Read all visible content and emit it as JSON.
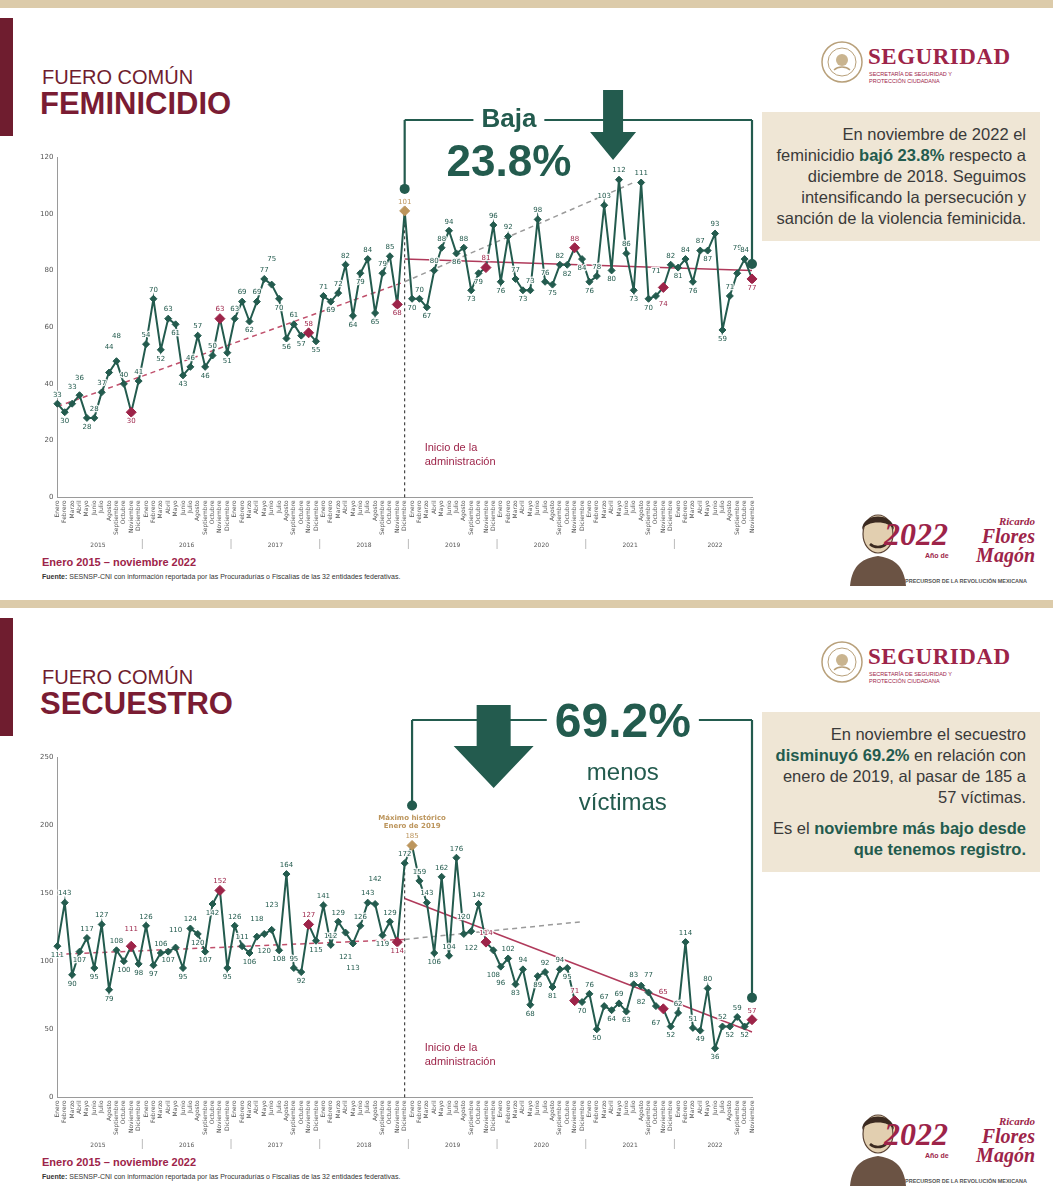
{
  "page": {
    "agency": "SEGURIDAD",
    "agency_subtitle": "SECRETARÍA DE SEGURIDAD Y PROTECCIÓN CIUDADANA",
    "badge": {
      "year": "2022",
      "prefix": "Año de",
      "name": "Ricardo Flores Magón",
      "tagline": "PRECURSOR DE LA REVOLUCIÓN MEXICANA"
    }
  },
  "chart_data": [
    {
      "type": "line",
      "subtitle": "FUERO COMÚN",
      "title": "FEMINICIDIO",
      "categories": [
        "Enero",
        "Febrero",
        "Marzo",
        "Abril",
        "Mayo",
        "Junio",
        "Julio",
        "Agosto",
        "Septiembre",
        "Octubre",
        "Noviembre",
        "Diciembre",
        "Enero",
        "Febrero",
        "Marzo",
        "Abril",
        "Mayo",
        "Junio",
        "Julio",
        "Agosto",
        "Septiembre",
        "Octubre",
        "Noviembre",
        "Diciembre",
        "Enero",
        "Febrero",
        "Marzo",
        "Abril",
        "Mayo",
        "Junio",
        "Julio",
        "Agosto",
        "Septiembre",
        "Octubre",
        "Noviembre",
        "Diciembre",
        "Enero",
        "Febrero",
        "Marzo",
        "Abril",
        "Mayo",
        "Junio",
        "Julio",
        "Agosto",
        "Septiembre",
        "Octubre",
        "Noviembre",
        "Diciembre",
        "Enero",
        "Febrero",
        "Marzo",
        "Abril",
        "Mayo",
        "Junio",
        "Julio",
        "Agosto",
        "Septiembre",
        "Octubre",
        "Noviembre",
        "Diciembre",
        "Enero",
        "Febrero",
        "Marzo",
        "Abril",
        "Mayo",
        "Junio",
        "Julio",
        "Agosto",
        "Septiembre",
        "Octubre",
        "Noviembre",
        "Diciembre",
        "Enero",
        "Febrero",
        "Marzo",
        "Abril",
        "Mayo",
        "Junio",
        "Julio",
        "Agosto",
        "Septiembre",
        "Octubre",
        "Noviembre",
        "Diciembre",
        "Enero",
        "Febrero",
        "Marzo",
        "Abril",
        "Mayo",
        "Junio",
        "Julio",
        "Agosto",
        "Septiembre",
        "Octubre",
        "Noviembre"
      ],
      "x_groups": [
        "2015",
        "2016",
        "2017",
        "2018",
        "2019",
        "2020",
        "2021",
        "2022"
      ],
      "series": [
        {
          "color": "#235b4e",
          "marker": "diamond",
          "line_style": "solid",
          "values": [
            33,
            30,
            33,
            36,
            28,
            28,
            37,
            44,
            48,
            40,
            30,
            41,
            54,
            70,
            52,
            63,
            61,
            43,
            46,
            57,
            46,
            50,
            63,
            51,
            63,
            69,
            62,
            69,
            77,
            75,
            70,
            56,
            61,
            57,
            58,
            55,
            71,
            69,
            72,
            82,
            64,
            79,
            84,
            65,
            79,
            85,
            68,
            101,
            70,
            70,
            67,
            80,
            88,
            94,
            86,
            88,
            73,
            79,
            81,
            96,
            76,
            92,
            77,
            73,
            73,
            98,
            76,
            75,
            82,
            82,
            88,
            84,
            76,
            78,
            103,
            80,
            112,
            86,
            73,
            111,
            70,
            71,
            74,
            82,
            81,
            84,
            76,
            87,
            87,
            93,
            59,
            71,
            79,
            84,
            77
          ],
          "colors": [
            "#235b4e",
            "#235b4e",
            "#235b4e",
            "#235b4e",
            "#235b4e",
            "#235b4e",
            "#235b4e",
            "#235b4e",
            "#235b4e",
            "#235b4e",
            "#9d2449",
            "#235b4e",
            "#235b4e",
            "#235b4e",
            "#235b4e",
            "#235b4e",
            "#235b4e",
            "#235b4e",
            "#235b4e",
            "#235b4e",
            "#235b4e",
            "#235b4e",
            "#9d2449",
            "#235b4e",
            "#235b4e",
            "#235b4e",
            "#235b4e",
            "#235b4e",
            "#235b4e",
            "#235b4e",
            "#235b4e",
            "#235b4e",
            "#235b4e",
            "#235b4e",
            "#9d2449",
            "#235b4e",
            "#235b4e",
            "#235b4e",
            "#235b4e",
            "#235b4e",
            "#235b4e",
            "#235b4e",
            "#235b4e",
            "#235b4e",
            "#235b4e",
            "#235b4e",
            "#9d2449",
            "#bc955c",
            "#235b4e",
            "#235b4e",
            "#235b4e",
            "#235b4e",
            "#235b4e",
            "#235b4e",
            "#235b4e",
            "#235b4e",
            "#235b4e",
            "#235b4e",
            "#9d2449",
            "#235b4e",
            "#235b4e",
            "#235b4e",
            "#235b4e",
            "#235b4e",
            "#235b4e",
            "#235b4e",
            "#235b4e",
            "#235b4e",
            "#235b4e",
            "#235b4e",
            "#9d2449",
            "#235b4e",
            "#235b4e",
            "#235b4e",
            "#235b4e",
            "#235b4e",
            "#235b4e",
            "#235b4e",
            "#235b4e",
            "#235b4e",
            "#235b4e",
            "#235b4e",
            "#9d2449",
            "#235b4e",
            "#235b4e",
            "#235b4e",
            "#235b4e",
            "#235b4e",
            "#235b4e",
            "#235b4e",
            "#235b4e",
            "#235b4e",
            "#235b4e",
            "#235b4e",
            "#9d2449"
          ]
        }
      ],
      "trend_lines": [
        {
          "x": [
            0,
            47
          ],
          "values": [
            32,
            76
          ],
          "color": "#c0506c",
          "line_style": "dashed"
        },
        {
          "x": [
            47,
            78
          ],
          "values": [
            76,
            111
          ],
          "color": "#9a9a9a",
          "line_style": "dashed"
        },
        {
          "x": [
            47,
            94
          ],
          "values": [
            84,
            80
          ],
          "color": "#b03a5b",
          "line_style": "solid"
        }
      ],
      "ylim": [
        0,
        120
      ],
      "yticks": [
        0,
        20,
        40,
        60,
        80,
        100,
        120
      ],
      "grid": false,
      "data_labels": true,
      "annotations": {
        "vline": {
          "x": 47,
          "text": "Inicio de la administración"
        },
        "bracket": {
          "from": 47,
          "to": 94,
          "kicker": "Baja",
          "headline": "23.8%"
        }
      },
      "callout": [
        "En noviembre de 2022 el feminicidio bajó 23.8% respecto a diciembre de 2018. Seguimos intensificando la persecución y sanción de la violencia feminicida."
      ],
      "callout_emphasis": [
        "bajó 23.8%"
      ],
      "period": "Enero 2015 – noviembre 2022",
      "source": "Fuente: SESNSP-CNI con información reportada por las Procuradurías o Fiscalías de las 32 entidades federativas."
    },
    {
      "type": "line",
      "subtitle": "FUERO COMÚN",
      "title": "SECUESTRO",
      "categories": [
        "Enero",
        "Febrero",
        "Marzo",
        "Abril",
        "Mayo",
        "Junio",
        "Julio",
        "Agosto",
        "Septiembre",
        "Octubre",
        "Noviembre",
        "Diciembre",
        "Enero",
        "Febrero",
        "Marzo",
        "Abril",
        "Mayo",
        "Junio",
        "Julio",
        "Agosto",
        "Septiembre",
        "Octubre",
        "Noviembre",
        "Diciembre",
        "Enero",
        "Febrero",
        "Marzo",
        "Abril",
        "Mayo",
        "Junio",
        "Julio",
        "Agosto",
        "Septiembre",
        "Octubre",
        "Noviembre",
        "Diciembre",
        "Enero",
        "Febrero",
        "Marzo",
        "Abril",
        "Mayo",
        "Junio",
        "Julio",
        "Agosto",
        "Septiembre",
        "Octubre",
        "Noviembre",
        "Diciembre",
        "Enero",
        "Febrero",
        "Marzo",
        "Abril",
        "Mayo",
        "Junio",
        "Julio",
        "Agosto",
        "Septiembre",
        "Octubre",
        "Noviembre",
        "Diciembre",
        "Enero",
        "Febrero",
        "Marzo",
        "Abril",
        "Mayo",
        "Junio",
        "Julio",
        "Agosto",
        "Septiembre",
        "Octubre",
        "Noviembre",
        "Diciembre",
        "Enero",
        "Febrero",
        "Marzo",
        "Abril",
        "Mayo",
        "Junio",
        "Julio",
        "Agosto",
        "Septiembre",
        "Octubre",
        "Noviembre",
        "Diciembre",
        "Enero",
        "Febrero",
        "Marzo",
        "Abril",
        "Mayo",
        "Junio",
        "Julio",
        "Agosto",
        "Septiembre",
        "Octubre",
        "Noviembre"
      ],
      "x_groups": [
        "2015",
        "2016",
        "2017",
        "2018",
        "2019",
        "2020",
        "2021",
        "2022"
      ],
      "series": [
        {
          "color": "#235b4e",
          "marker": "diamond",
          "line_style": "solid",
          "values": [
            111,
            143,
            90,
            107,
            117,
            95,
            127,
            79,
            108,
            100,
            111,
            98,
            126,
            97,
            106,
            107,
            110,
            95,
            124,
            120,
            107,
            142,
            152,
            95,
            126,
            111,
            106,
            118,
            120,
            123,
            108,
            164,
            95,
            92,
            127,
            115,
            141,
            112,
            129,
            121,
            113,
            126,
            143,
            142,
            119,
            129,
            114,
            172,
            185,
            159,
            143,
            106,
            162,
            104,
            176,
            120,
            122,
            142,
            114,
            108,
            96,
            102,
            83,
            94,
            68,
            89,
            92,
            81,
            94,
            95,
            71,
            70,
            76,
            50,
            67,
            64,
            69,
            63,
            83,
            82,
            77,
            67,
            65,
            52,
            62,
            114,
            51,
            49,
            80,
            36,
            52,
            52,
            59,
            52,
            57
          ],
          "colors": [
            "#235b4e",
            "#235b4e",
            "#235b4e",
            "#235b4e",
            "#235b4e",
            "#235b4e",
            "#235b4e",
            "#235b4e",
            "#235b4e",
            "#235b4e",
            "#9d2449",
            "#235b4e",
            "#235b4e",
            "#235b4e",
            "#235b4e",
            "#235b4e",
            "#235b4e",
            "#235b4e",
            "#235b4e",
            "#235b4e",
            "#235b4e",
            "#235b4e",
            "#9d2449",
            "#235b4e",
            "#235b4e",
            "#235b4e",
            "#235b4e",
            "#235b4e",
            "#235b4e",
            "#235b4e",
            "#235b4e",
            "#235b4e",
            "#235b4e",
            "#235b4e",
            "#9d2449",
            "#235b4e",
            "#235b4e",
            "#235b4e",
            "#235b4e",
            "#235b4e",
            "#235b4e",
            "#235b4e",
            "#235b4e",
            "#235b4e",
            "#235b4e",
            "#235b4e",
            "#9d2449",
            "#235b4e",
            "#bc955c",
            "#235b4e",
            "#235b4e",
            "#235b4e",
            "#235b4e",
            "#235b4e",
            "#235b4e",
            "#235b4e",
            "#235b4e",
            "#235b4e",
            "#9d2449",
            "#235b4e",
            "#235b4e",
            "#235b4e",
            "#235b4e",
            "#235b4e",
            "#235b4e",
            "#235b4e",
            "#235b4e",
            "#235b4e",
            "#235b4e",
            "#235b4e",
            "#9d2449",
            "#235b4e",
            "#235b4e",
            "#235b4e",
            "#235b4e",
            "#235b4e",
            "#235b4e",
            "#235b4e",
            "#235b4e",
            "#235b4e",
            "#235b4e",
            "#235b4e",
            "#9d2449",
            "#235b4e",
            "#235b4e",
            "#235b4e",
            "#235b4e",
            "#235b4e",
            "#235b4e",
            "#235b4e",
            "#235b4e",
            "#235b4e",
            "#235b4e",
            "#235b4e",
            "#9d2449"
          ]
        }
      ],
      "trend_lines": [
        {
          "x": [
            0,
            47
          ],
          "values": [
            105,
            116
          ],
          "color": "#c0506c",
          "line_style": "dashed"
        },
        {
          "x": [
            47,
            71
          ],
          "values": [
            116,
            129
          ],
          "color": "#9a9a9a",
          "line_style": "dashed"
        },
        {
          "x": [
            47,
            94
          ],
          "values": [
            146,
            48
          ],
          "color": "#b03a5b",
          "line_style": "solid"
        }
      ],
      "ylim": [
        0,
        250
      ],
      "yticks": [
        0,
        50,
        100,
        150,
        200,
        250
      ],
      "grid": false,
      "data_labels": true,
      "annotations": {
        "vline": {
          "x": 47,
          "text": "Inicio de la administración"
        },
        "point_notes": [
          {
            "x": 48,
            "text": "Máximo histórico Enero de 2019"
          }
        ],
        "bracket": {
          "from": 48,
          "to": 94,
          "headline": "69.2%",
          "caption": "menos víctimas"
        }
      },
      "callout": [
        "En noviembre el secuestro disminuyó 69.2% en relación con enero de 2019, al pasar de 185 a 57 víctimas.",
        "Es el noviembre más bajo desde que tenemos registro."
      ],
      "callout_emphasis": [
        "disminuyó 69.2%",
        "noviembre más bajo desde que tenemos registro."
      ],
      "period": "Enero 2015 – noviembre 2022",
      "source": "Fuente: SESNSP-CNI con información reportada por las Procuradurías o Fiscalías de las 32 entidades federativas."
    }
  ]
}
